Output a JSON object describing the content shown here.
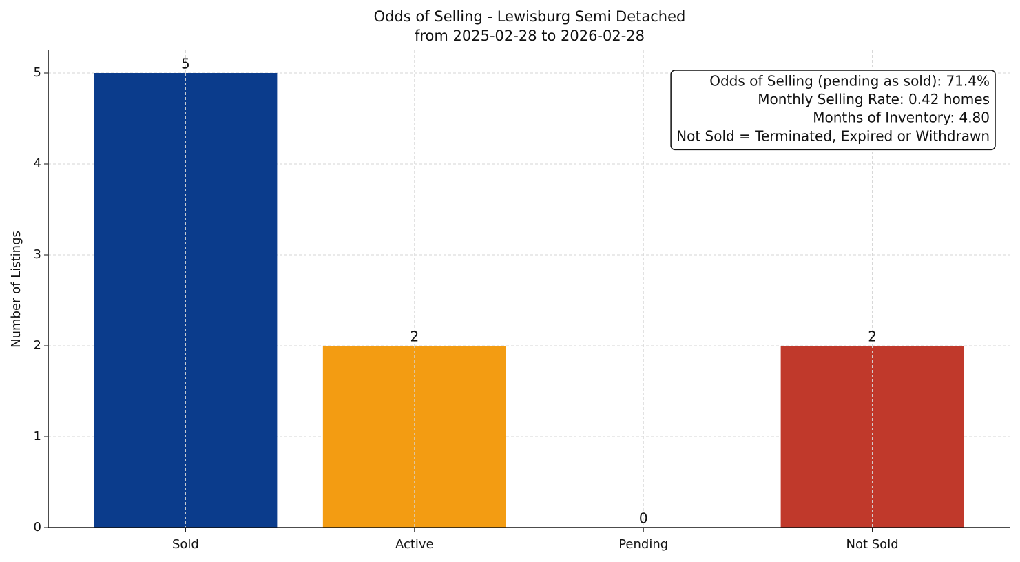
{
  "chart_data": {
    "type": "bar",
    "title": [
      "Odds of Selling - Lewisburg Semi Detached",
      "from 2025-02-28 to 2026-02-28"
    ],
    "y_label": "Number of Listings",
    "categories": [
      "Sold",
      "Active",
      "Pending",
      "Not Sold"
    ],
    "values": [
      5,
      2,
      0,
      2
    ],
    "colors": [
      "#0b3c8c",
      "#f39c12",
      "#2e86c1",
      "#c0392b"
    ],
    "ylim": [
      0,
      5.25
    ],
    "yticks": [
      0,
      1,
      2,
      3,
      4,
      5
    ],
    "grid": true,
    "annotation": {
      "corner": "upper right",
      "lines": [
        "Odds of Selling (pending as sold): 71.4%",
        "Monthly Selling Rate: 0.42 homes",
        "Months of Inventory: 4.80",
        "Not Sold = Terminated, Expired or Withdrawn"
      ]
    }
  }
}
